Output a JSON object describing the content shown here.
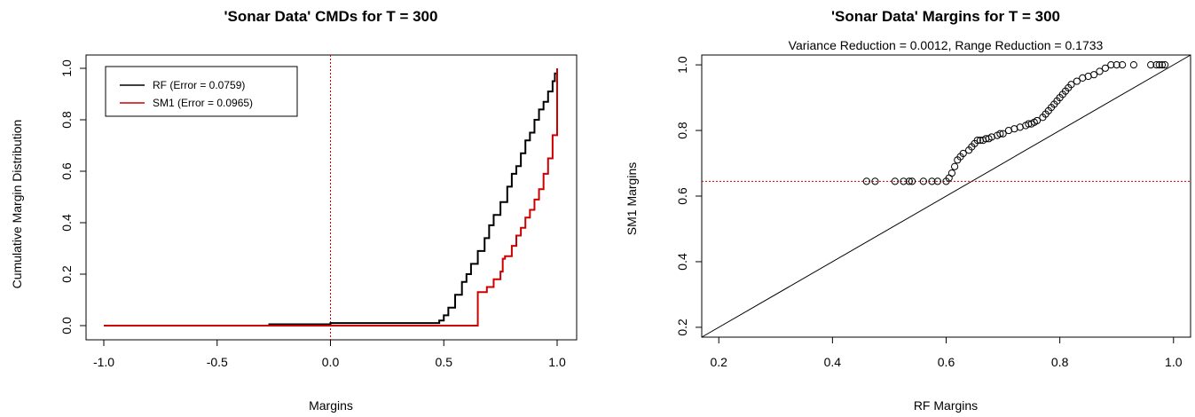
{
  "chart_data": [
    {
      "type": "line",
      "title": "'Sonar Data' CMDs for T = 300",
      "xlabel": "Margins",
      "ylabel": "Cumulative Margin Distribution",
      "xlim": [
        -1.0,
        1.0
      ],
      "ylim": [
        0.0,
        1.0
      ],
      "x_ticks": [
        "-1.0",
        "-0.5",
        "0.0",
        "0.5",
        "1.0"
      ],
      "y_ticks": [
        "0.0",
        "0.2",
        "0.4",
        "0.6",
        "0.8",
        "1.0"
      ],
      "legend_position": "top-left",
      "colors": {
        "RF": "#000000",
        "SM1": "#cc0000",
        "reference": "#cc0000"
      },
      "reference_line": {
        "orientation": "vertical",
        "x": 0.0,
        "style": "dotted"
      },
      "series": [
        {
          "name": "RF (Error = 0.0759)",
          "x": [
            -1.0,
            -0.28,
            -0.27,
            -0.18,
            0.0,
            0.45,
            0.48,
            0.5,
            0.52,
            0.55,
            0.58,
            0.6,
            0.62,
            0.65,
            0.68,
            0.7,
            0.72,
            0.75,
            0.78,
            0.8,
            0.82,
            0.84,
            0.86,
            0.88,
            0.9,
            0.92,
            0.94,
            0.96,
            0.98,
            0.99,
            1.0
          ],
          "y": [
            0.0,
            0.0,
            0.005,
            0.005,
            0.01,
            0.01,
            0.02,
            0.04,
            0.07,
            0.12,
            0.17,
            0.2,
            0.24,
            0.29,
            0.34,
            0.39,
            0.43,
            0.48,
            0.54,
            0.59,
            0.62,
            0.67,
            0.72,
            0.75,
            0.8,
            0.84,
            0.87,
            0.91,
            0.95,
            0.98,
            1.0
          ]
        },
        {
          "name": "SM1 (Error = 0.0965)",
          "x": [
            -1.0,
            0.65,
            0.65,
            0.66,
            0.69,
            0.72,
            0.75,
            0.76,
            0.77,
            0.8,
            0.82,
            0.84,
            0.86,
            0.88,
            0.9,
            0.92,
            0.94,
            0.96,
            0.98,
            1.0,
            1.0
          ],
          "y": [
            0.0,
            0.0,
            0.13,
            0.13,
            0.15,
            0.18,
            0.21,
            0.26,
            0.27,
            0.31,
            0.35,
            0.38,
            0.42,
            0.45,
            0.49,
            0.53,
            0.59,
            0.65,
            0.74,
            0.78,
            1.0
          ]
        }
      ]
    },
    {
      "type": "scatter",
      "title": "'Sonar Data' Margins for T = 300",
      "subtitle": "Variance Reduction = 0.0012, Range Reduction = 0.1733",
      "xlabel": "RF Margins",
      "ylabel": "SM1 Margins",
      "xlim": [
        0.17,
        1.03
      ],
      "ylim": [
        0.17,
        1.03
      ],
      "x_ticks": [
        "0.2",
        "0.4",
        "0.6",
        "0.8",
        "1.0"
      ],
      "y_ticks": [
        "0.2",
        "0.4",
        "0.6",
        "0.8",
        "1.0"
      ],
      "colors": {
        "points": "#000000",
        "diagonal": "#000000",
        "reference": "#cc0000"
      },
      "diagonal_line": {
        "from": [
          0.17,
          0.17
        ],
        "to": [
          1.03,
          1.03
        ]
      },
      "reference_line": {
        "orientation": "horizontal",
        "y": 0.645,
        "style": "dotted"
      },
      "series": [
        {
          "x": [
            0.46,
            0.475,
            0.51,
            0.525,
            0.535,
            0.54,
            0.56,
            0.575,
            0.585,
            0.6,
            0.605,
            0.61,
            0.615,
            0.62,
            0.625,
            0.63,
            0.64,
            0.645,
            0.65,
            0.655,
            0.66,
            0.665,
            0.67,
            0.675,
            0.68,
            0.69,
            0.695,
            0.7,
            0.71,
            0.72,
            0.73,
            0.74,
            0.745,
            0.75,
            0.755,
            0.76,
            0.77,
            0.775,
            0.78,
            0.785,
            0.79,
            0.795,
            0.8,
            0.805,
            0.81,
            0.815,
            0.82,
            0.83,
            0.84,
            0.85,
            0.86,
            0.87,
            0.88,
            0.89,
            0.9,
            0.91,
            0.93,
            0.96,
            0.97,
            0.975,
            0.98,
            0.985
          ],
          "y": [
            0.645,
            0.645,
            0.645,
            0.645,
            0.645,
            0.645,
            0.645,
            0.645,
            0.645,
            0.645,
            0.655,
            0.67,
            0.69,
            0.71,
            0.72,
            0.73,
            0.74,
            0.75,
            0.76,
            0.77,
            0.77,
            0.77,
            0.775,
            0.775,
            0.78,
            0.785,
            0.79,
            0.79,
            0.8,
            0.805,
            0.81,
            0.815,
            0.82,
            0.82,
            0.825,
            0.83,
            0.84,
            0.85,
            0.86,
            0.87,
            0.88,
            0.89,
            0.9,
            0.91,
            0.92,
            0.93,
            0.94,
            0.95,
            0.96,
            0.965,
            0.97,
            0.98,
            0.99,
            1.0,
            1.0,
            1.0,
            1.0,
            1.0,
            1.0,
            1.0,
            1.0,
            1.0
          ]
        }
      ]
    }
  ]
}
